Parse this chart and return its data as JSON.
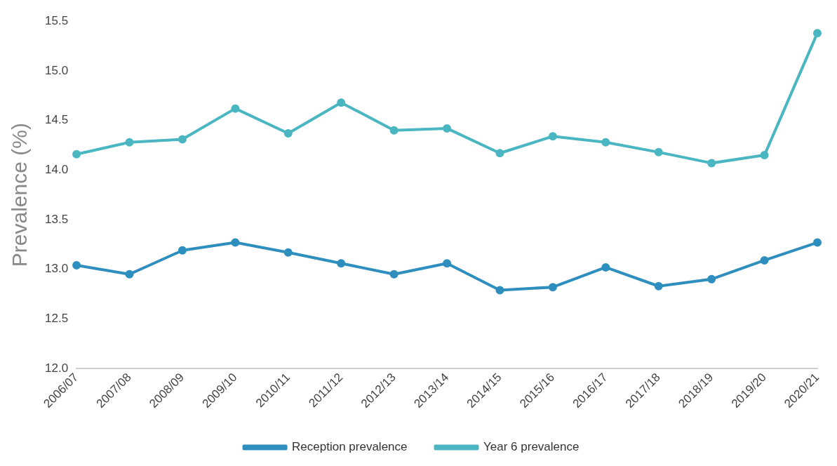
{
  "chart_data": {
    "type": "line",
    "ylabel": "Prevalence (%)",
    "categories": [
      "2006/07",
      "2007/08",
      "2008/09",
      "2009/10",
      "2010/11",
      "2011/12",
      "2012/13",
      "2013/14",
      "2014/15",
      "2015/16",
      "2016/17",
      "2017/18",
      "2018/19",
      "2019/20",
      "2020/21"
    ],
    "series": [
      {
        "name": "Reception prevalence",
        "color": "#2e8fbf",
        "values": [
          13.04,
          12.95,
          13.19,
          13.27,
          13.17,
          13.06,
          12.95,
          13.06,
          12.79,
          12.82,
          13.02,
          12.83,
          12.9,
          13.09,
          13.27
        ]
      },
      {
        "name": "Year 6 prevalence",
        "color": "#4ab6c2",
        "values": [
          14.16,
          14.28,
          14.31,
          14.62,
          14.37,
          14.68,
          14.4,
          14.42,
          14.17,
          14.34,
          14.28,
          14.18,
          14.07,
          14.15,
          15.38
        ]
      }
    ],
    "ylim": [
      12,
      15.5
    ],
    "yticks": [
      {
        "value": 12,
        "label": "12.0"
      },
      {
        "value": 12.5,
        "label": "12.5"
      },
      {
        "value": 13,
        "label": "13.0"
      },
      {
        "value": 13.5,
        "label": "13.5"
      },
      {
        "value": 14,
        "label": "14.0"
      },
      {
        "value": 14.5,
        "label": "14.5"
      },
      {
        "value": 15,
        "label": "15.0"
      },
      {
        "value": 15.5,
        "label": "15.5"
      }
    ],
    "grid": false,
    "legend": "bottom",
    "marker": "circle",
    "line_style": "solid"
  }
}
